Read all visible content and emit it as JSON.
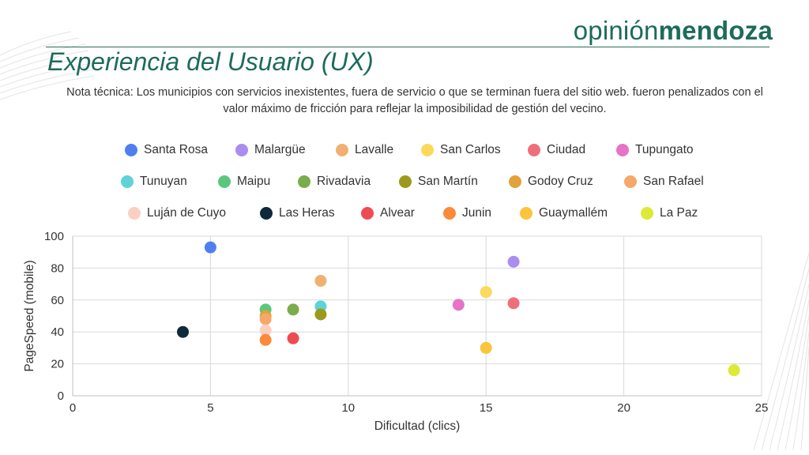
{
  "brand": {
    "light": "opinión",
    "bold": "mendoza"
  },
  "slide": {
    "title": "Experiencia del Usuario (UX)",
    "note": "Nota técnica: Los municipios con servicios inexistentes, fuera de servicio o que se terminan fuera del sitio web. fueron penalizados con el valor máximo de fricción para reflejar la imposibilidad de gestión del vecino."
  },
  "chart_data": {
    "type": "scatter",
    "title": "",
    "xlabel": "Dificultad (clics)",
    "ylabel": "PageSpeed (mobile)",
    "xlim": [
      0,
      25
    ],
    "ylim": [
      0,
      100
    ],
    "xticks": [
      0,
      5,
      10,
      15,
      20,
      25
    ],
    "yticks": [
      0,
      20,
      40,
      60,
      80,
      100
    ],
    "grid": true,
    "legend_position": "top",
    "series": [
      {
        "name": "Santa Rosa",
        "color": "#4f7fef",
        "x": 5,
        "y": 93
      },
      {
        "name": "Malargüe",
        "color": "#a98ef0",
        "x": 16,
        "y": 84
      },
      {
        "name": "Lavalle",
        "color": "#f1b071",
        "x": 9,
        "y": 72
      },
      {
        "name": "San Carlos",
        "color": "#fbd95c",
        "x": 15,
        "y": 65
      },
      {
        "name": "Ciudad",
        "color": "#ee6f7a",
        "x": 16,
        "y": 58
      },
      {
        "name": "Tupungato",
        "color": "#e673c6",
        "x": 14,
        "y": 57
      },
      {
        "name": "Tunuyan",
        "color": "#5dd3d8",
        "x": 9,
        "y": 56
      },
      {
        "name": "Maipu",
        "color": "#5bc77e",
        "x": 7,
        "y": 54
      },
      {
        "name": "Rivadavia",
        "color": "#7bac4b",
        "x": 8,
        "y": 54
      },
      {
        "name": "San Martín",
        "color": "#9c9a1c",
        "x": 9,
        "y": 51
      },
      {
        "name": "Godoy Cruz",
        "color": "#e1a23a",
        "x": 7,
        "y": 50
      },
      {
        "name": "San Rafael",
        "color": "#f6a86b",
        "x": 7,
        "y": 48
      },
      {
        "name": "Luján de Cuyo",
        "color": "#fbcfc0",
        "x": 7,
        "y": 41
      },
      {
        "name": "Las Heras",
        "color": "#0e2a3a",
        "x": 4,
        "y": 40
      },
      {
        "name": "Alvear",
        "color": "#ef4b52",
        "x": 8,
        "y": 36
      },
      {
        "name": "Junin",
        "color": "#fb8a3b",
        "x": 7,
        "y": 35
      },
      {
        "name": "Guaymallém",
        "color": "#fcc43a",
        "x": 15,
        "y": 30
      },
      {
        "name": "La Paz",
        "color": "#dce935",
        "x": 24,
        "y": 16
      }
    ]
  }
}
